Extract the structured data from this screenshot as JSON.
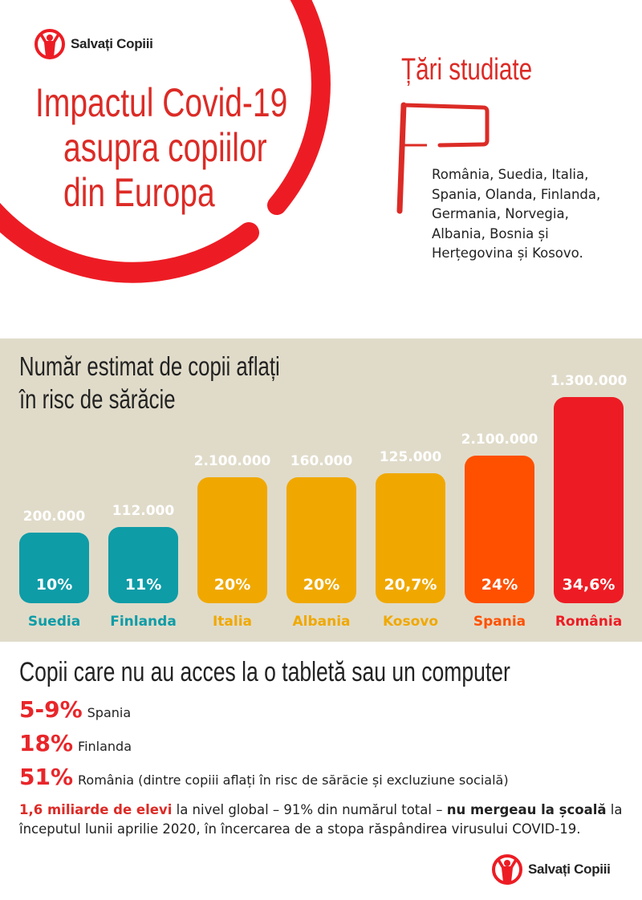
{
  "brand": {
    "name": "Salvați Copiii",
    "color": "#ed1c24"
  },
  "header": {
    "title_lines": [
      "Impactul Covid-19",
      "asupra copiilor",
      "din Europa"
    ]
  },
  "countries_box": {
    "title": "Țări studiate",
    "text_lines": [
      "România, Suedia, Italia,",
      "Spania, Olanda, Finlanda,",
      "Germania, Norvegia,",
      "Albania, Bosnia și",
      "Herțegovina și Kosovo."
    ],
    "icon": "flag-icon"
  },
  "chart_data": {
    "type": "bar",
    "title_lines": [
      "Număr estimat de copii aflați",
      "în risc de sărăcie"
    ],
    "categories": [
      "Suedia",
      "Finlanda",
      "Italia",
      "Albania",
      "Kosovo",
      "Spania",
      "România"
    ],
    "values": [
      10,
      11,
      20,
      20,
      20.7,
      24,
      34.6
    ],
    "value_labels": [
      "10%",
      "11%",
      "20%",
      "20%",
      "20,7%",
      "24%",
      "34,6%"
    ],
    "counts": [
      "200.000",
      "112.000",
      "2.100.000",
      "160.000",
      "125.000",
      "2.100.000",
      "1.300.000"
    ],
    "colors": [
      "#0e9ca7",
      "#0e9ca7",
      "#f0a800",
      "#f0a800",
      "#f0a800",
      "#ff5000",
      "#ed1c24"
    ],
    "background": "#e0dbc9",
    "grid": false
  },
  "access": {
    "title": "Copii care nu au acces la o tabletă sau un computer",
    "stats": [
      {
        "value": "5-9%",
        "label": "Spania"
      },
      {
        "value": "18%",
        "label": "Finlanda"
      },
      {
        "value": "51%",
        "label": "România (dintre copiii aflați în risc de sărăcie și excluziune socială)"
      }
    ]
  },
  "note": {
    "highlight": "1,6 miliarde de elevi",
    "part1": " la nivel global – 91% din numărul total – ",
    "bold": "nu mergeau la școală",
    "part2": " la începutul lunii aprilie 2020, în încercarea de a stopa răspândirea virusului COVID-19."
  }
}
